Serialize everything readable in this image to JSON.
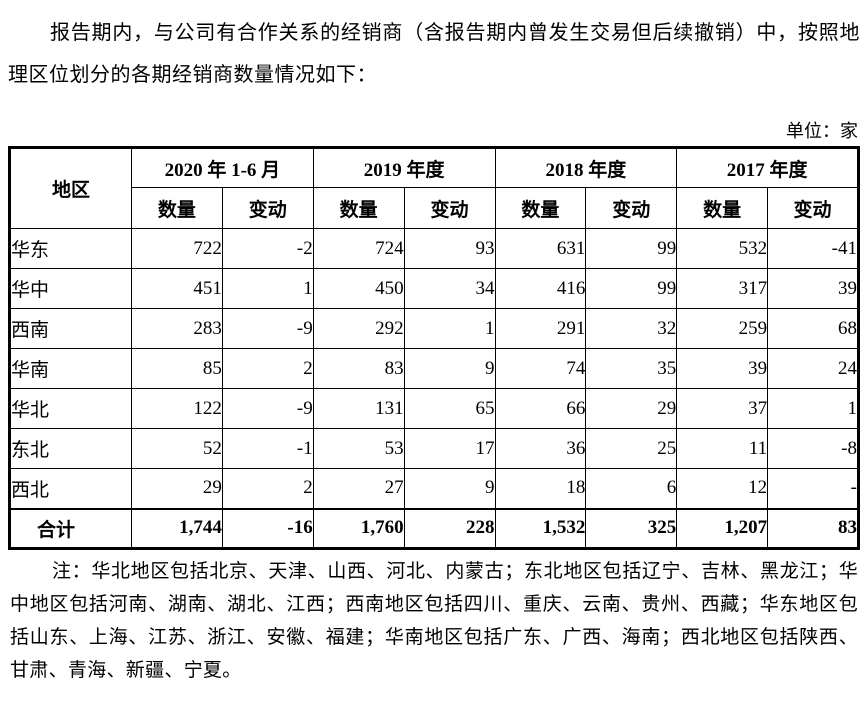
{
  "intro": {
    "text": "报告期内，与公司有合作关系的经销商（含报告期内曾发生交易但后续撤销）中，按照地理区位划分的各期经销商数量情况如下："
  },
  "unit_label": "单位：家",
  "table": {
    "region_header": "地区",
    "periods": [
      "2020 年 1-6 月",
      "2019 年度",
      "2018 年度",
      "2017 年度"
    ],
    "sub_headers": {
      "quantity": "数量",
      "change": "变动"
    },
    "rows": [
      {
        "region": "华东",
        "values": [
          "722",
          "-2",
          "724",
          "93",
          "631",
          "99",
          "532",
          "-41"
        ]
      },
      {
        "region": "华中",
        "values": [
          "451",
          "1",
          "450",
          "34",
          "416",
          "99",
          "317",
          "39"
        ]
      },
      {
        "region": "西南",
        "values": [
          "283",
          "-9",
          "292",
          "1",
          "291",
          "32",
          "259",
          "68"
        ]
      },
      {
        "region": "华南",
        "values": [
          "85",
          "2",
          "83",
          "9",
          "74",
          "35",
          "39",
          "24"
        ]
      },
      {
        "region": "华北",
        "values": [
          "122",
          "-9",
          "131",
          "65",
          "66",
          "29",
          "37",
          "1"
        ]
      },
      {
        "region": "东北",
        "values": [
          "52",
          "-1",
          "53",
          "17",
          "36",
          "25",
          "11",
          "-8"
        ]
      },
      {
        "region": "西北",
        "values": [
          "29",
          "2",
          "27",
          "9",
          "18",
          "6",
          "12",
          "-"
        ]
      }
    ],
    "total_row": {
      "region": "合计",
      "values": [
        "1,744",
        "-16",
        "1,760",
        "228",
        "1,532",
        "325",
        "1,207",
        "83"
      ]
    }
  },
  "note": {
    "text": "注：华北地区包括北京、天津、山西、河北、内蒙古；东北地区包括辽宁、吉林、黑龙江；华中地区包括河南、湖南、湖北、江西；西南地区包括四川、重庆、云南、贵州、西藏；华东地区包括山东、上海、江苏、浙江、安徽、福建；华南地区包括广东、广西、海南；西北地区包括陕西、甘肃、青海、新疆、宁夏。"
  },
  "colors": {
    "text": "#000000",
    "background": "#ffffff",
    "border": "#000000"
  }
}
